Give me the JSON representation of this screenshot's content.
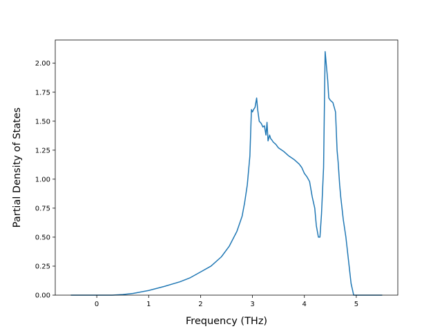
{
  "chart_data": {
    "type": "line",
    "title": "",
    "xlabel": "Frequency (THz)",
    "ylabel": "Partial Density of States",
    "xlim": [
      -0.8,
      5.8
    ],
    "ylim": [
      0,
      2.2
    ],
    "grid": false,
    "legend": "none",
    "x_ticks": [
      0,
      1,
      2,
      3,
      4,
      5
    ],
    "x_tick_labels": [
      "0",
      "1",
      "2",
      "3",
      "4",
      "5"
    ],
    "y_ticks": [
      0,
      0.25,
      0.5,
      0.75,
      1.0,
      1.25,
      1.5,
      1.75,
      2.0
    ],
    "y_tick_labels": [
      "0.00",
      "0.25",
      "0.50",
      "0.75",
      "1.00",
      "1.25",
      "1.50",
      "1.75",
      "2.00"
    ],
    "series": [
      {
        "color": "#1f77b4",
        "x": [
          -0.5,
          0.3,
          0.5,
          0.7,
          1.0,
          1.3,
          1.6,
          1.8,
          2.0,
          2.2,
          2.4,
          2.55,
          2.7,
          2.8,
          2.85,
          2.9,
          2.95,
          2.98,
          3.0,
          3.02,
          3.05,
          3.08,
          3.1,
          3.13,
          3.17,
          3.2,
          3.23,
          3.26,
          3.28,
          3.3,
          3.33,
          3.35,
          3.37,
          3.4,
          3.45,
          3.5,
          3.6,
          3.7,
          3.8,
          3.9,
          3.95,
          4.0,
          4.05,
          4.1,
          4.15,
          4.2,
          4.23,
          4.27,
          4.3,
          4.33,
          4.37,
          4.4,
          4.42,
          4.45,
          4.47,
          4.5,
          4.55,
          4.6,
          4.63,
          4.65,
          4.68,
          4.7,
          4.75,
          4.8,
          4.85,
          4.9,
          4.95,
          4.97,
          5.0,
          5.1,
          5.5
        ],
        "y": [
          0.0,
          0.0,
          0.005,
          0.015,
          0.04,
          0.075,
          0.115,
          0.15,
          0.2,
          0.25,
          0.33,
          0.42,
          0.55,
          0.68,
          0.8,
          0.95,
          1.2,
          1.6,
          1.58,
          1.6,
          1.62,
          1.7,
          1.6,
          1.5,
          1.48,
          1.45,
          1.46,
          1.38,
          1.49,
          1.33,
          1.38,
          1.35,
          1.34,
          1.32,
          1.3,
          1.27,
          1.24,
          1.2,
          1.17,
          1.13,
          1.1,
          1.05,
          1.02,
          0.98,
          0.85,
          0.75,
          0.6,
          0.5,
          0.5,
          0.7,
          1.1,
          2.1,
          2.0,
          1.85,
          1.7,
          1.68,
          1.66,
          1.58,
          1.25,
          1.15,
          0.95,
          0.85,
          0.65,
          0.5,
          0.3,
          0.1,
          0.0,
          0.0,
          0.0,
          0.0,
          0.0
        ]
      }
    ]
  }
}
